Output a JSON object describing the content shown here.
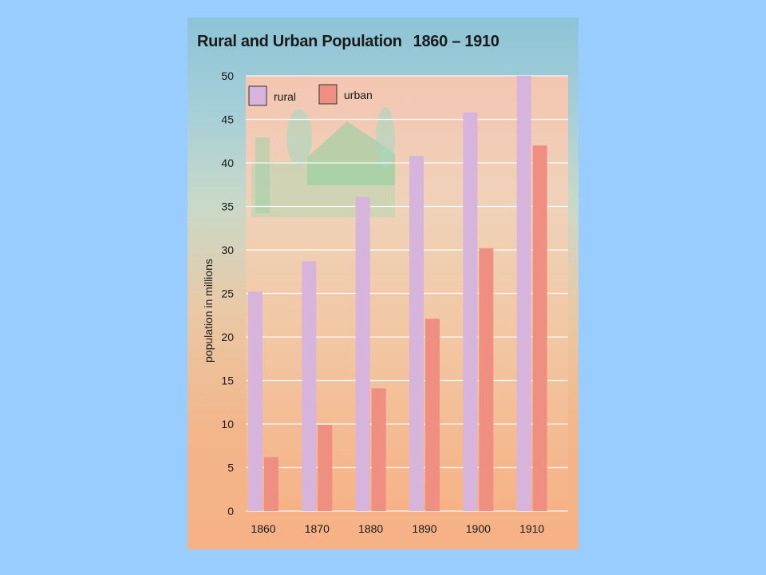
{
  "colors": {
    "rural": "#d7b4dc",
    "urban": "#ef8f82",
    "grid": "#ffffff",
    "background": "#99ccff"
  },
  "chart_data": {
    "type": "bar",
    "title": "Rural and Urban Population",
    "title_years": "1860 – 1910",
    "xlabel": "",
    "ylabel": "population in millions",
    "categories": [
      "1860",
      "1870",
      "1880",
      "1890",
      "1900",
      "1910"
    ],
    "series": [
      {
        "name": "rural",
        "values": [
          25.2,
          28.7,
          36.1,
          40.8,
          45.8,
          50.0
        ]
      },
      {
        "name": "urban",
        "values": [
          6.2,
          9.9,
          14.1,
          22.1,
          30.2,
          42.0
        ]
      }
    ],
    "ylim": [
      0,
      50
    ],
    "yticks": [
      0,
      5,
      10,
      15,
      20,
      25,
      30,
      35,
      40,
      45,
      50
    ],
    "grid": true,
    "legend": "top-left"
  }
}
